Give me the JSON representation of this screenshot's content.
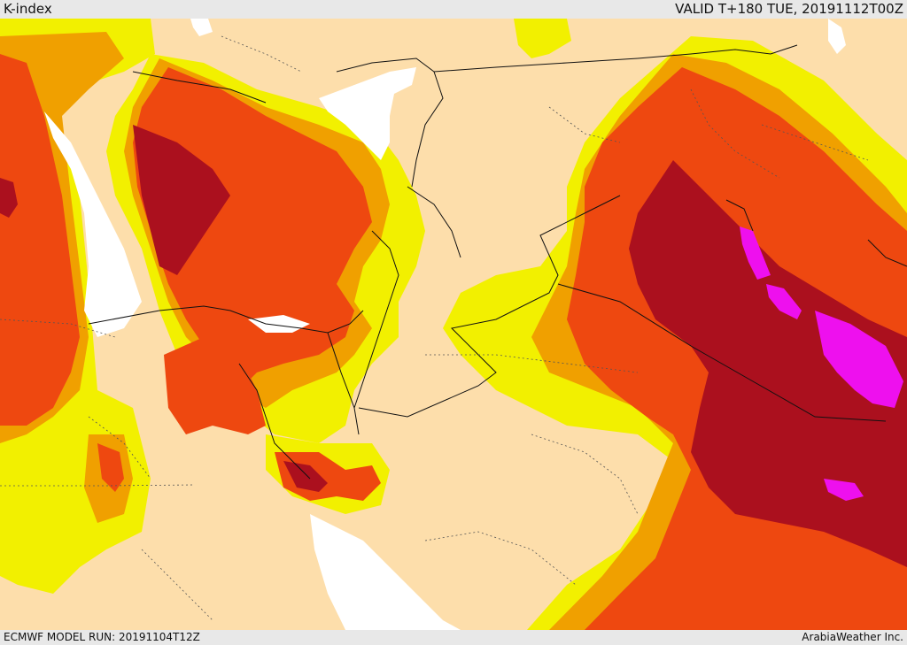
{
  "header": {
    "title": "K-index",
    "valid": "VALID T+180 TUE, 20191112T00Z"
  },
  "footer": {
    "model_run": "ECMWF MODEL RUN: 20191104T12Z",
    "credit": "ArabiaWeather Inc."
  },
  "colors": {
    "sea": "#ffffff",
    "base": "#fddeab",
    "level1": "#f2f000",
    "level2": "#f0a000",
    "level3": "#ee4810",
    "level4": "#ab101e",
    "level5": "#ee10ee",
    "borders": "#111111"
  }
}
